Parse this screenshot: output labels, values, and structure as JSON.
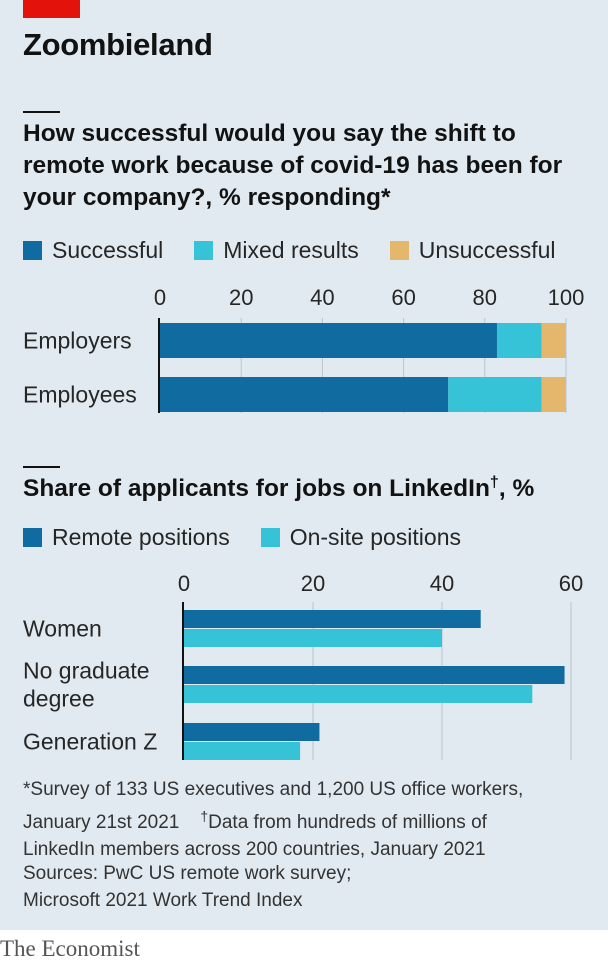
{
  "headline": "Zoombieland",
  "chart_data": [
    {
      "type": "bar",
      "orientation": "horizontal",
      "stacked": true,
      "title": "How successful would you say the shift to remote work because of covid-19 has been for your company?, % responding*",
      "categories": [
        "Employers",
        "Employees"
      ],
      "series": [
        {
          "name": "Successful",
          "values": [
            83,
            71
          ],
          "color": "#106ca0"
        },
        {
          "name": "Mixed results",
          "values": [
            11,
            23
          ],
          "color": "#36c3d8"
        },
        {
          "name": "Unsuccessful",
          "values": [
            6,
            6
          ],
          "color": "#e4b76c"
        }
      ],
      "xlim": [
        0,
        100
      ],
      "xticks": [
        "0",
        "20",
        "40",
        "60",
        "80",
        "100"
      ],
      "legend": "top"
    },
    {
      "type": "bar",
      "orientation": "horizontal",
      "stacked": false,
      "title": "Share of applicants for jobs on LinkedIn",
      "title_mark": "†",
      "title_suffix": ", %",
      "categories": [
        "Women",
        "No graduate degree",
        "Generation Z"
      ],
      "category_lines": [
        [
          "Women"
        ],
        [
          "No graduate",
          "degree"
        ],
        [
          "Generation Z"
        ]
      ],
      "series": [
        {
          "name": "Remote positions",
          "values": [
            46,
            59,
            21
          ],
          "color": "#106ca0"
        },
        {
          "name": "On-site positions",
          "values": [
            40,
            54,
            18
          ],
          "color": "#36c3d8"
        }
      ],
      "xlim": [
        0,
        60
      ],
      "xticks": [
        "0",
        "20",
        "40",
        "60"
      ],
      "legend": "top"
    }
  ],
  "footnote": {
    "line1": "*Survey of 133 US executives and 1,200 US office workers,",
    "line2_a": "January 21st 2021",
    "dagger": "†",
    "line2_b": "Data from hundreds of millions of",
    "line3": "LinkedIn members across 200 countries, January 2021"
  },
  "sources": {
    "line1": "Sources: PwC US remote work survey;",
    "line2": "Microsoft 2021 Work Trend Index"
  },
  "brand": "The Economist"
}
